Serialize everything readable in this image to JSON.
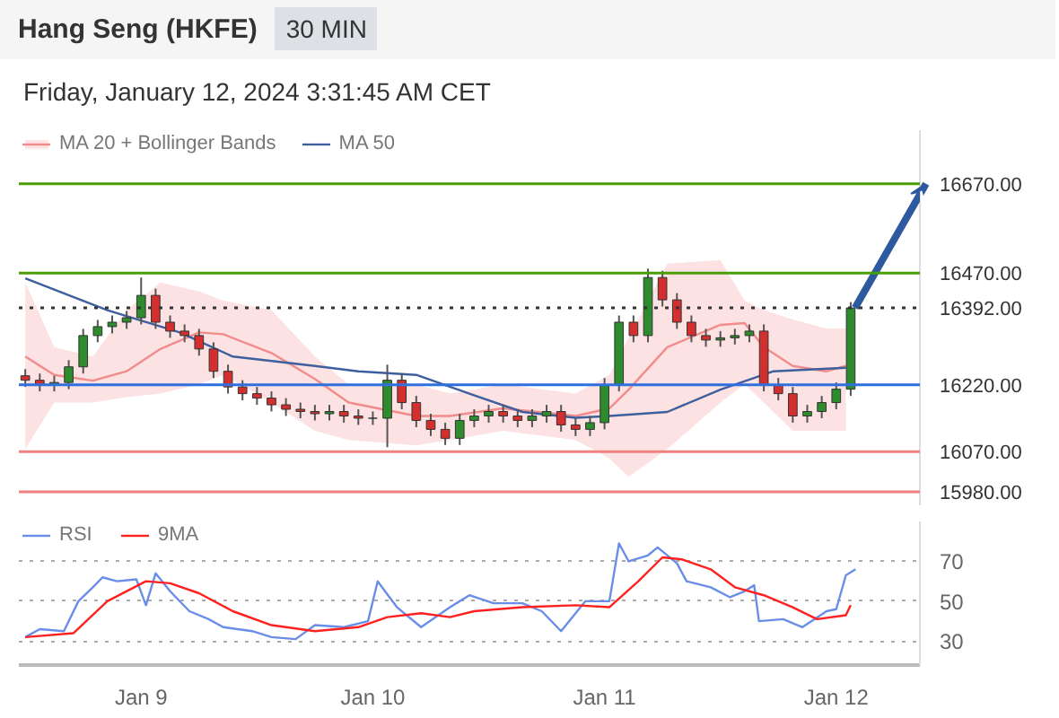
{
  "chart_data": [
    {
      "type": "candlestick",
      "title": "Hang Seng (HKFE)",
      "subtitle": "Friday, January 12, 2024 3:31:45 AM CET",
      "annotations": [
        "30 MIN"
      ],
      "x": [
        "2024-01-08T12:00",
        "2024-01-08T13:30",
        "2024-01-08T15:00",
        "2024-01-08T16:30",
        "2024-01-08T18:00",
        "2024-01-08T19:30",
        "2024-01-08T21:00",
        "2024-01-08T22:30",
        "2024-01-09T00:00",
        "2024-01-09T01:30",
        "2024-01-09T03:00",
        "2024-01-09T04:30",
        "2024-01-09T06:00",
        "2024-01-09T07:30",
        "2024-01-09T09:00",
        "2024-01-09T10:30",
        "2024-01-09T12:00",
        "2024-01-09T13:30",
        "2024-01-09T15:00",
        "2024-01-09T16:30",
        "2024-01-09T18:00",
        "2024-01-09T19:30",
        "2024-01-09T21:00",
        "2024-01-09T22:30",
        "2024-01-10T00:00",
        "2024-01-10T01:30",
        "2024-01-10T03:00",
        "2024-01-10T04:30",
        "2024-01-10T06:00",
        "2024-01-10T07:30",
        "2024-01-10T09:00",
        "2024-01-10T10:30",
        "2024-01-10T12:00",
        "2024-01-10T13:30",
        "2024-01-10T15:00",
        "2024-01-10T16:30",
        "2024-01-10T18:00",
        "2024-01-10T19:30",
        "2024-01-10T21:00",
        "2024-01-10T22:30",
        "2024-01-11T00:00",
        "2024-01-11T01:30",
        "2024-01-11T03:00",
        "2024-01-11T04:30",
        "2024-01-11T06:00",
        "2024-01-11T07:30",
        "2024-01-11T09:00",
        "2024-01-11T10:30",
        "2024-01-11T12:00",
        "2024-01-11T13:30",
        "2024-01-11T15:00",
        "2024-01-11T16:30",
        "2024-01-11T18:00",
        "2024-01-11T19:30",
        "2024-01-11T21:00",
        "2024-01-11T22:30",
        "2024-01-12T00:00",
        "2024-01-12T01:30"
      ],
      "ohlc": [
        [
          16240,
          16255,
          16215,
          16230
        ],
        [
          16230,
          16245,
          16205,
          16220
        ],
        [
          16220,
          16240,
          16205,
          16225
        ],
        [
          16225,
          16275,
          16210,
          16260
        ],
        [
          16260,
          16345,
          16245,
          16330
        ],
        [
          16330,
          16365,
          16315,
          16350
        ],
        [
          16350,
          16375,
          16335,
          16360
        ],
        [
          16360,
          16385,
          16345,
          16370
        ],
        [
          16370,
          16460,
          16355,
          16420
        ],
        [
          16420,
          16435,
          16345,
          16360
        ],
        [
          16360,
          16375,
          16325,
          16340
        ],
        [
          16340,
          16355,
          16315,
          16330
        ],
        [
          16330,
          16345,
          16285,
          16300
        ],
        [
          16300,
          16315,
          16235,
          16250
        ],
        [
          16250,
          16265,
          16200,
          16215
        ],
        [
          16215,
          16230,
          16185,
          16200
        ],
        [
          16200,
          16215,
          16175,
          16190
        ],
        [
          16190,
          16205,
          16160,
          16175
        ],
        [
          16175,
          16190,
          16150,
          16165
        ],
        [
          16165,
          16180,
          16145,
          16160
        ],
        [
          16160,
          16175,
          16140,
          16155
        ],
        [
          16155,
          16175,
          16140,
          16160
        ],
        [
          16160,
          16175,
          16135,
          16150
        ],
        [
          16150,
          16165,
          16130,
          16145
        ],
        [
          16145,
          16160,
          16130,
          16145
        ],
        [
          16145,
          16265,
          16080,
          16230
        ],
        [
          16230,
          16245,
          16165,
          16180
        ],
        [
          16180,
          16195,
          16125,
          16140
        ],
        [
          16140,
          16155,
          16105,
          16120
        ],
        [
          16120,
          16135,
          16085,
          16100
        ],
        [
          16100,
          16155,
          16085,
          16140
        ],
        [
          16140,
          16165,
          16125,
          16150
        ],
        [
          16150,
          16175,
          16135,
          16160
        ],
        [
          16160,
          16175,
          16135,
          16150
        ],
        [
          16150,
          16165,
          16125,
          16140
        ],
        [
          16140,
          16165,
          16125,
          16150
        ],
        [
          16150,
          16175,
          16135,
          16160
        ],
        [
          16160,
          16175,
          16115,
          16130
        ],
        [
          16130,
          16145,
          16105,
          16120
        ],
        [
          16120,
          16150,
          16105,
          16135
        ],
        [
          16135,
          16235,
          16120,
          16220
        ],
        [
          16220,
          16375,
          16205,
          16360
        ],
        [
          16360,
          16375,
          16315,
          16330
        ],
        [
          16330,
          16480,
          16315,
          16460
        ],
        [
          16460,
          16475,
          16395,
          16410
        ],
        [
          16410,
          16425,
          16345,
          16360
        ],
        [
          16360,
          16375,
          16315,
          16330
        ],
        [
          16330,
          16345,
          16305,
          16320
        ],
        [
          16320,
          16340,
          16305,
          16325
        ],
        [
          16325,
          16345,
          16310,
          16330
        ],
        [
          16330,
          16355,
          16315,
          16340
        ],
        [
          16340,
          16355,
          16205,
          16220
        ],
        [
          16220,
          16235,
          16185,
          16200
        ],
        [
          16200,
          16215,
          16135,
          16150
        ],
        [
          16150,
          16175,
          16135,
          16160
        ],
        [
          16160,
          16195,
          16145,
          16180
        ],
        [
          16180,
          16225,
          16165,
          16210
        ],
        [
          16210,
          16405,
          16195,
          16392
        ]
      ],
      "series": [
        {
          "name": "MA 20 + Bollinger Bands",
          "type": "line",
          "color": "#f28b8b",
          "x": [
            "2024-01-08T12:00",
            "2024-01-08T15:00",
            "2024-01-08T19:00",
            "2024-01-08T22:30",
            "2024-01-09T02:00",
            "2024-01-09T06:00",
            "2024-01-09T08:30",
            "2024-01-09T13:30",
            "2024-01-09T18:00",
            "2024-01-09T21:30",
            "2024-01-10T04:30",
            "2024-01-10T08:00",
            "2024-01-10T13:30",
            "2024-01-10T21:00",
            "2024-01-11T00:30",
            "2024-01-11T02:30",
            "2024-01-11T06:30",
            "2024-01-11T12:00",
            "2024-01-11T14:30",
            "2024-01-11T16:30",
            "2024-01-11T19:30",
            "2024-01-11T23:00",
            "2024-01-12T01:00"
          ],
          "values": [
            16283,
            16242,
            16229,
            16250,
            16300,
            16337,
            16333,
            16291,
            16233,
            16180,
            16150,
            16150,
            16167,
            16150,
            16167,
            16209,
            16304,
            16354,
            16358,
            16304,
            16262,
            16250,
            16262
          ],
          "upper": [
            16449,
            16304,
            16283,
            16387,
            16449,
            16429,
            16408,
            16387,
            16283,
            16221,
            16221,
            16200,
            16221,
            16200,
            16242,
            16325,
            16491,
            16499,
            16408,
            16387,
            16366,
            16346,
            16346
          ],
          "lower": [
            16076,
            16180,
            16180,
            16192,
            16200,
            16221,
            16242,
            16180,
            16117,
            16096,
            16084,
            16096,
            16117,
            16096,
            16055,
            16014,
            16076,
            16180,
            16221,
            16180,
            16117,
            16117,
            16117
          ]
        },
        {
          "name": "MA 50",
          "type": "line",
          "color": "#3d5f9e",
          "x": [
            "2024-01-08T12:00",
            "2024-01-08T20:30",
            "2024-01-09T04:00",
            "2024-01-09T09:30",
            "2024-01-09T18:00",
            "2024-01-09T22:30",
            "2024-01-10T04:30",
            "2024-01-10T10:00",
            "2024-01-10T15:30",
            "2024-01-10T21:00",
            "2024-01-11T00:30",
            "2024-01-11T06:30",
            "2024-01-11T12:00",
            "2024-01-11T17:30",
            "2024-01-12T01:00"
          ],
          "values": [
            16458,
            16387,
            16337,
            16283,
            16262,
            16250,
            16242,
            16200,
            16159,
            16146,
            16150,
            16159,
            16209,
            16250,
            16258
          ]
        }
      ],
      "ref_lines": [
        {
          "axis": "y",
          "value": 16670,
          "label": "16670.00",
          "color": "#4a9e0a"
        },
        {
          "axis": "y",
          "value": 16470,
          "label": "16470.00",
          "color": "#4a9e0a"
        },
        {
          "axis": "y",
          "value": 16392,
          "label": "16392.00",
          "color": "#333333",
          "line_style": "dotted"
        },
        {
          "axis": "y",
          "value": 16220,
          "label": "16220.00",
          "color": "#2f6fde"
        },
        {
          "axis": "y",
          "value": 16070,
          "label": "16070.00",
          "color": "#f08080"
        },
        {
          "axis": "y",
          "value": 15980,
          "label": "15980.00",
          "color": "#f08080"
        }
      ],
      "xlim": [
        "2024-01-08T11:20",
        "2024-01-12T08:40"
      ],
      "ylim": [
        15950,
        16790
      ],
      "legend": "top left",
      "tick_labels": "y"
    },
    {
      "type": "line",
      "series": [
        {
          "name": "RSI",
          "color": "#6a8ee8",
          "x": [
            "2024-01-08T12:00",
            "2024-01-08T13:30",
            "2024-01-08T16:00",
            "2024-01-08T17:30",
            "2024-01-08T19:00",
            "2024-01-08T20:00",
            "2024-01-08T21:30",
            "2024-01-08T23:30",
            "2024-01-09T00:30",
            "2024-01-09T01:30",
            "2024-01-09T03:00",
            "2024-01-09T05:00",
            "2024-01-09T07:00",
            "2024-01-09T08:30",
            "2024-01-09T11:30",
            "2024-01-09T13:30",
            "2024-01-09T16:00",
            "2024-01-09T18:00",
            "2024-01-09T21:00",
            "2024-01-09T23:30",
            "2024-01-10T00:30",
            "2024-01-10T02:30",
            "2024-01-10T05:00",
            "2024-01-10T08:00",
            "2024-01-10T10:00",
            "2024-01-10T12:30",
            "2024-01-10T15:30",
            "2024-01-10T17:30",
            "2024-01-10T19:30",
            "2024-01-10T22:00",
            "2024-01-11T00:30",
            "2024-01-11T01:30",
            "2024-01-11T02:30",
            "2024-01-11T04:30",
            "2024-01-11T05:30",
            "2024-01-11T07:30",
            "2024-01-11T08:30",
            "2024-01-11T11:00",
            "2024-01-11T13:00",
            "2024-01-11T14:30",
            "2024-01-11T15:30",
            "2024-01-11T16:00",
            "2024-01-11T18:30",
            "2024-01-11T20:30",
            "2024-01-11T23:00",
            "2024-01-12T00:00",
            "2024-01-12T01:00",
            "2024-01-12T02:00"
          ],
          "values": [
            32,
            36,
            35,
            50,
            57,
            62,
            60,
            61,
            48,
            64,
            55,
            45,
            41,
            37,
            35,
            32,
            31,
            38,
            37,
            40,
            60,
            47,
            37,
            47,
            53,
            49,
            49,
            45,
            35,
            50,
            50,
            79,
            70,
            73,
            77,
            69,
            60,
            57,
            52,
            55,
            58,
            40,
            41,
            37,
            45,
            46,
            63,
            66
          ]
        },
        {
          "name": "9MA",
          "color": "#ff2020",
          "x": [
            "2024-01-08T12:00",
            "2024-01-08T17:00",
            "2024-01-08T20:30",
            "2024-01-09T00:30",
            "2024-01-09T03:00",
            "2024-01-09T06:00",
            "2024-01-09T09:30",
            "2024-01-09T13:30",
            "2024-01-09T18:00",
            "2024-01-09T22:30",
            "2024-01-10T01:30",
            "2024-01-10T05:00",
            "2024-01-10T08:00",
            "2024-01-10T10:30",
            "2024-01-10T15:30",
            "2024-01-10T21:00",
            "2024-01-11T00:30",
            "2024-01-11T03:30",
            "2024-01-11T06:00",
            "2024-01-11T08:00",
            "2024-01-11T11:00",
            "2024-01-11T13:30",
            "2024-01-11T16:30",
            "2024-01-11T19:30",
            "2024-01-11T22:00",
            "2024-01-12T01:00",
            "2024-01-12T01:30"
          ],
          "values": [
            32,
            34,
            50,
            60,
            59,
            54,
            45,
            38,
            35,
            37,
            42,
            44,
            42,
            45,
            47,
            48,
            47,
            60,
            72,
            71,
            66,
            57,
            53,
            47,
            41,
            43,
            48
          ]
        }
      ],
      "xlim": [
        "2024-01-08T11:20",
        "2024-01-12T08:40"
      ],
      "ylim": [
        18,
        90
      ],
      "yticks": [
        30,
        50,
        70
      ],
      "xticks": [
        {
          "value": "2024-01-09",
          "label": "Jan 9"
        },
        {
          "value": "2024-01-10",
          "label": "Jan 10"
        },
        {
          "value": "2024-01-11",
          "label": "Jan 11"
        },
        {
          "value": "2024-01-12",
          "label": "Jan 12"
        }
      ],
      "grid": "y",
      "legend": "top left"
    }
  ]
}
